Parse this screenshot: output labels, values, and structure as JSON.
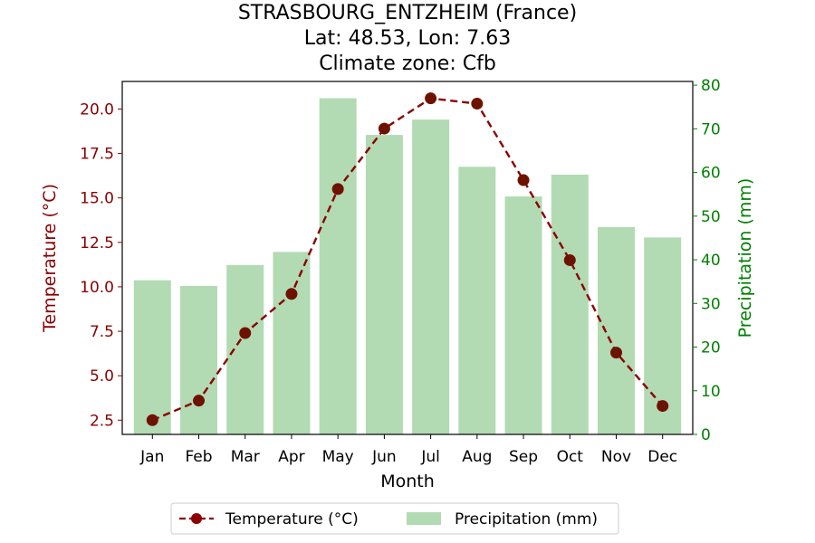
{
  "chart_data": {
    "type": "bar",
    "title_lines": [
      "STRASBOURG_ENTZHEIM (France)",
      "Lat: 48.53, Lon: 7.63",
      "Climate zone: Cfb"
    ],
    "xlabel": "Month",
    "ylabel_left": "Temperature (°C)",
    "ylabel_right": "Precipitation (mm)",
    "categories": [
      "Jan",
      "Feb",
      "Mar",
      "Apr",
      "May",
      "Jun",
      "Jul",
      "Aug",
      "Sep",
      "Oct",
      "Nov",
      "Dec"
    ],
    "series": [
      {
        "name": "Temperature (°C)",
        "type": "line",
        "axis": "left",
        "color": "#8b0000",
        "values": [
          2.5,
          3.6,
          7.4,
          9.6,
          15.5,
          18.9,
          20.6,
          20.3,
          16.0,
          11.5,
          6.3,
          3.3
        ]
      },
      {
        "name": "Precipitation (mm)",
        "type": "bar",
        "axis": "right",
        "color": "#b2dab3",
        "values": [
          35.3,
          34.0,
          38.8,
          41.8,
          77.0,
          68.6,
          72.1,
          61.3,
          54.5,
          59.5,
          47.5,
          45.1
        ]
      }
    ],
    "ylim_left": [
      1.7,
      21.55
    ],
    "yticks_left": [
      2.5,
      5.0,
      7.5,
      10.0,
      12.5,
      15.0,
      17.5,
      20.0
    ],
    "ytick_labels_left": [
      "2.5",
      "5.0",
      "7.5",
      "10.0",
      "12.5",
      "15.0",
      "17.5",
      "20.0"
    ],
    "ylim_right": [
      0,
      80.85
    ],
    "yticks_right": [
      0,
      10,
      20,
      30,
      40,
      50,
      60,
      70,
      80
    ],
    "ytick_labels_right": [
      "0",
      "10",
      "20",
      "30",
      "40",
      "50",
      "60",
      "70",
      "80"
    ],
    "left_axis_color": "#8b0000",
    "right_axis_color": "#008000",
    "grid": false,
    "legend_position": "bottom-center"
  }
}
